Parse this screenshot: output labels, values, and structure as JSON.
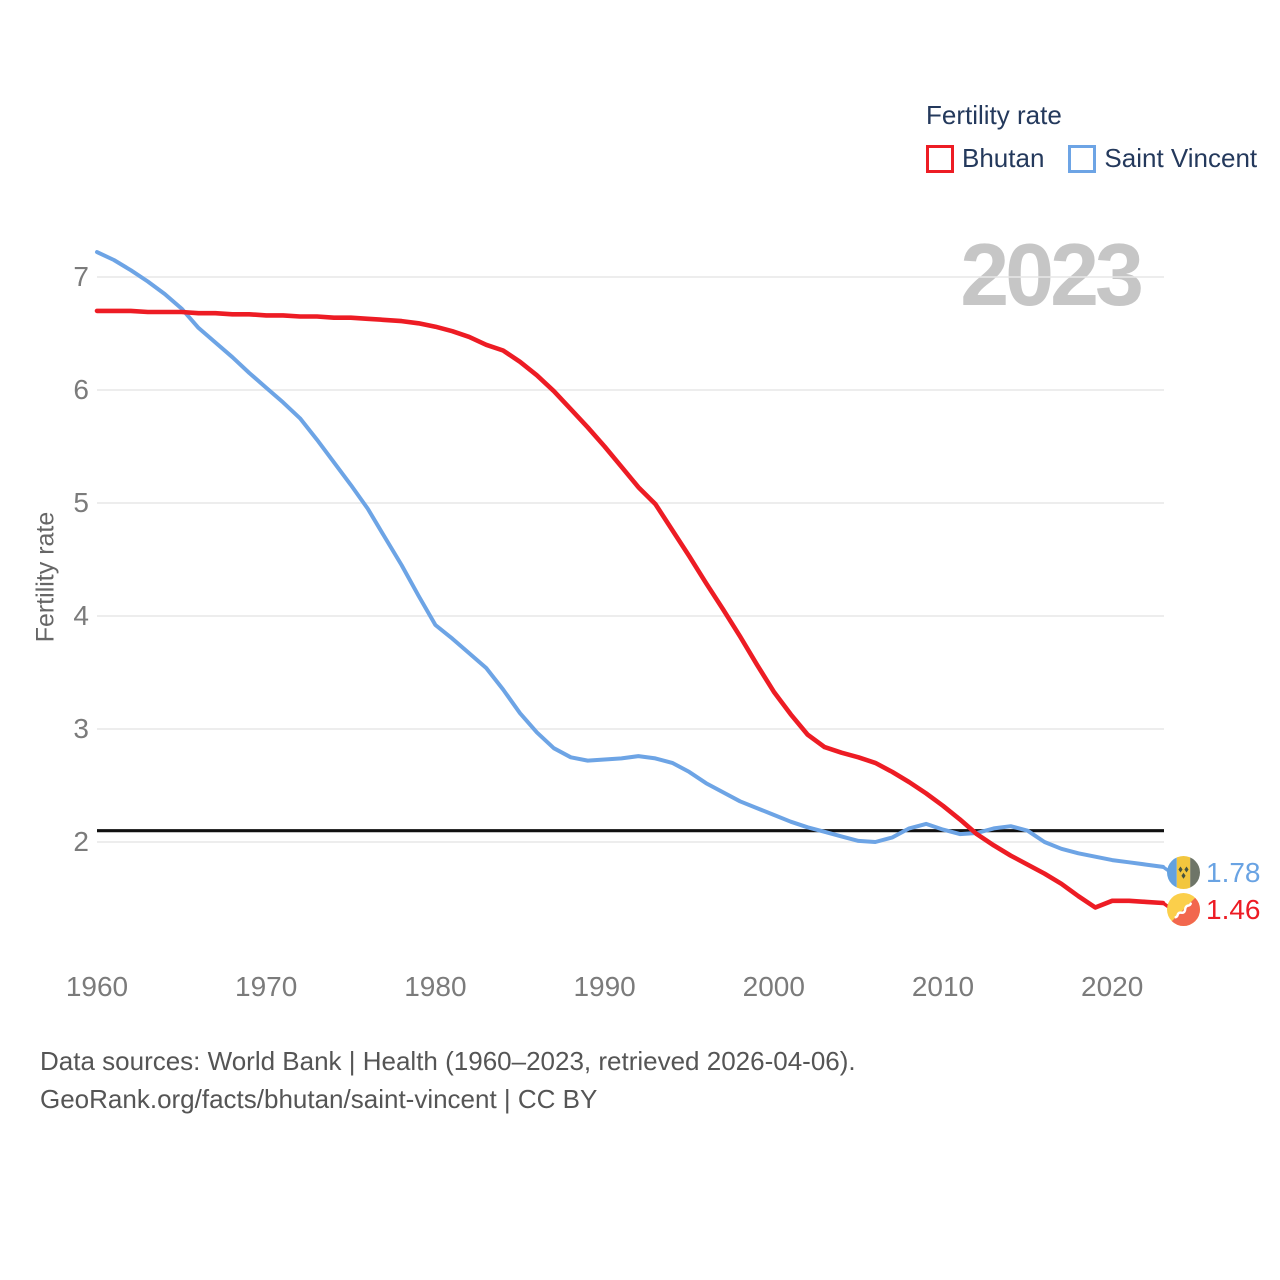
{
  "legend": {
    "title": "Fertility rate",
    "series": [
      {
        "label": "Bhutan",
        "color": "#ed1c24"
      },
      {
        "label": "Saint Vincent",
        "color": "#6da4e5"
      }
    ]
  },
  "watermark": "2023",
  "y_axis": {
    "title": "Fertility rate",
    "ticks": [
      7,
      6,
      5,
      4,
      3,
      2
    ]
  },
  "x_axis": {
    "ticks": [
      1960,
      1970,
      1980,
      1990,
      2000,
      2010,
      2020
    ]
  },
  "replacement_line": {
    "value": 2.1,
    "color": "#111111"
  },
  "end_labels": [
    {
      "series": "Saint Vincent",
      "value": "1.78",
      "color": "#69a3e3",
      "flag": "saint-vincent"
    },
    {
      "series": "Bhutan",
      "value": "1.46",
      "color": "#ed1c24",
      "flag": "bhutan"
    }
  ],
  "footer": {
    "line1": "Data sources: World Bank | Health (1960–2023, retrieved 2026-04-06).",
    "line2": "GeoRank.org/facts/bhutan/saint-vincent | CC BY"
  },
  "chart_data": {
    "type": "line",
    "title": "Fertility rate",
    "ylabel": "Fertility rate",
    "xlabel": "",
    "ylim": [
      1.3,
      7.35
    ],
    "xlim": [
      1960,
      2023
    ],
    "grid": true,
    "legend_position": "top-right",
    "threshold": 2.1,
    "years": [
      1960,
      1961,
      1962,
      1963,
      1964,
      1965,
      1966,
      1967,
      1968,
      1969,
      1970,
      1971,
      1972,
      1973,
      1974,
      1975,
      1976,
      1977,
      1978,
      1979,
      1980,
      1981,
      1982,
      1983,
      1984,
      1985,
      1986,
      1987,
      1988,
      1989,
      1990,
      1991,
      1992,
      1993,
      1994,
      1995,
      1996,
      1997,
      1998,
      1999,
      2000,
      2001,
      2002,
      2003,
      2004,
      2005,
      2006,
      2007,
      2008,
      2009,
      2010,
      2011,
      2012,
      2013,
      2014,
      2015,
      2016,
      2017,
      2018,
      2019,
      2020,
      2021,
      2022,
      2023
    ],
    "series": [
      {
        "name": "Bhutan",
        "color": "#ed1c24",
        "end_value": 1.46,
        "values": [
          6.7,
          6.7,
          6.7,
          6.69,
          6.69,
          6.69,
          6.68,
          6.68,
          6.67,
          6.67,
          6.66,
          6.66,
          6.65,
          6.65,
          6.64,
          6.64,
          6.63,
          6.62,
          6.61,
          6.59,
          6.56,
          6.52,
          6.47,
          6.4,
          6.35,
          6.25,
          6.13,
          5.99,
          5.83,
          5.67,
          5.5,
          5.32,
          5.14,
          4.99,
          4.76,
          4.53,
          4.29,
          4.06,
          3.82,
          3.57,
          3.33,
          3.13,
          2.95,
          2.84,
          2.79,
          2.75,
          2.7,
          2.62,
          2.53,
          2.43,
          2.32,
          2.2,
          2.07,
          1.97,
          1.88,
          1.8,
          1.72,
          1.63,
          1.52,
          1.42,
          1.48,
          1.48,
          1.47,
          1.46
        ]
      },
      {
        "name": "Saint Vincent",
        "color": "#6da4e5",
        "end_value": 1.78,
        "values": [
          7.22,
          7.15,
          7.06,
          6.96,
          6.85,
          6.72,
          6.55,
          6.42,
          6.29,
          6.15,
          6.02,
          5.89,
          5.75,
          5.56,
          5.36,
          5.16,
          4.95,
          4.7,
          4.45,
          4.18,
          3.92,
          3.8,
          3.67,
          3.54,
          3.35,
          3.14,
          2.97,
          2.83,
          2.75,
          2.72,
          2.73,
          2.74,
          2.76,
          2.74,
          2.7,
          2.62,
          2.52,
          2.44,
          2.36,
          2.3,
          2.24,
          2.18,
          2.13,
          2.09,
          2.05,
          2.01,
          2.0,
          2.04,
          2.12,
          2.16,
          2.11,
          2.07,
          2.08,
          2.12,
          2.14,
          2.1,
          2.0,
          1.94,
          1.9,
          1.87,
          1.84,
          1.82,
          1.8,
          1.78
        ]
      }
    ]
  }
}
